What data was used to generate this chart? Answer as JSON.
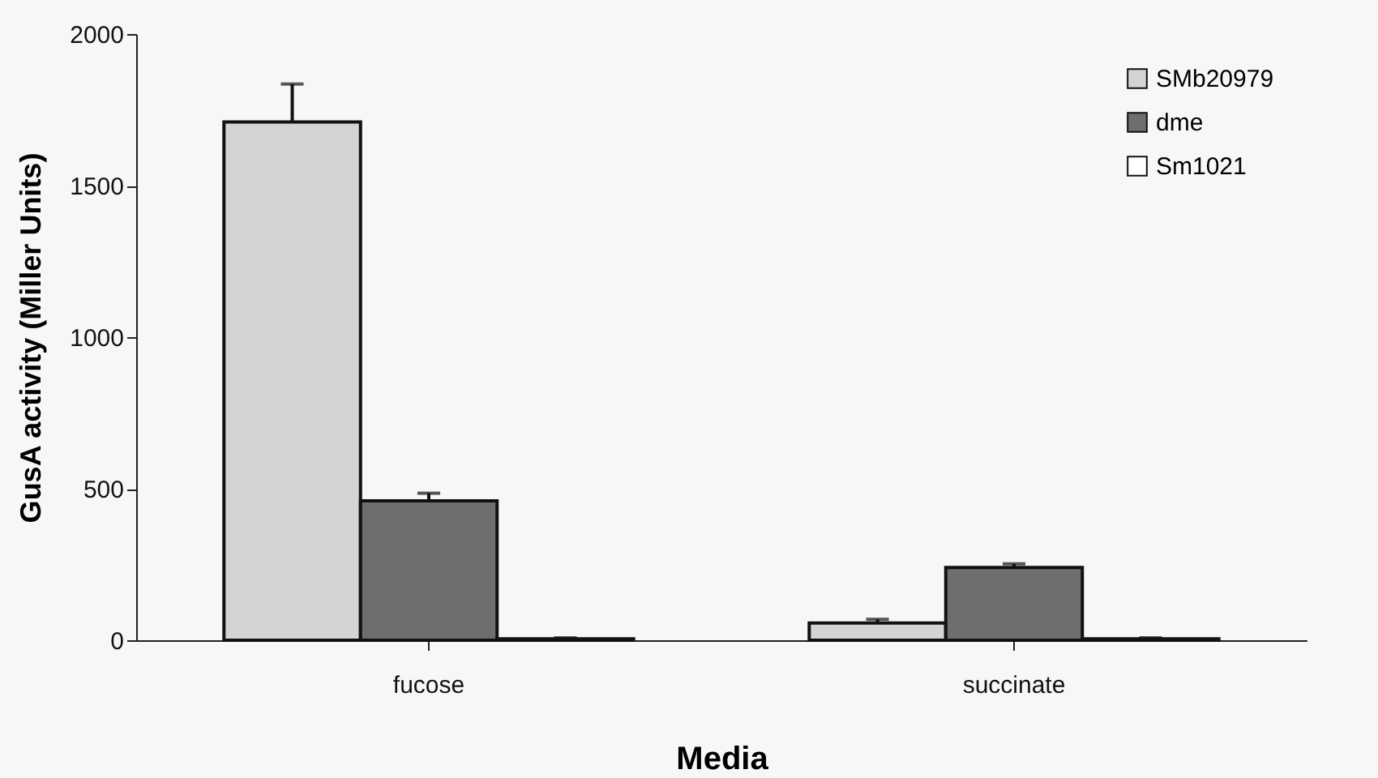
{
  "chart_data": {
    "type": "bar",
    "xlabel": "Media",
    "ylabel": "GusA activity (Miller Units)",
    "categories": [
      "fucose",
      "succinate"
    ],
    "series": [
      {
        "name": "SMb20979",
        "color": "#d4d4d4",
        "values": [
          1710,
          57
        ],
        "errors": [
          125,
          12
        ]
      },
      {
        "name": "dme",
        "color": "#6e6e6e",
        "values": [
          460,
          240
        ],
        "errors": [
          25,
          12
        ]
      },
      {
        "name": "Sm1021",
        "color": "#ffffff",
        "values": [
          5,
          5
        ],
        "errors": [
          3,
          3
        ]
      }
    ],
    "ylim": [
      0,
      2000
    ],
    "yticks": [
      0,
      500,
      1000,
      1500,
      2000
    ],
    "grid": false,
    "legend": "top right"
  }
}
